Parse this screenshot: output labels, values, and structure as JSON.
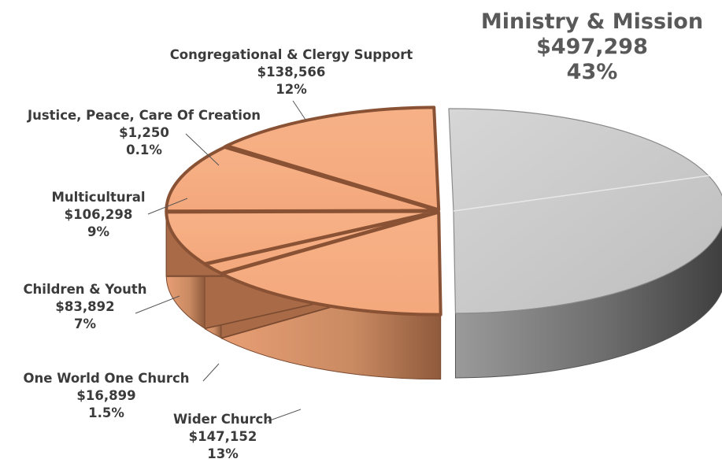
{
  "chart_data": {
    "type": "pie",
    "style": "3d-exploded",
    "slices": [
      {
        "name": "Ministry & Mission",
        "amount": "$497,298",
        "percent": "43%",
        "value": 497298,
        "color": "#c8c8c8"
      },
      {
        "name": "Wider Church",
        "amount": "$147,152",
        "percent": "13%",
        "value": 147152,
        "color": "#f6ad82"
      },
      {
        "name": "One World One Church",
        "amount": "$16,899",
        "percent": "1.5%",
        "value": 16899,
        "color": "#f6ad82"
      },
      {
        "name": "Children & Youth",
        "amount": "$83,892",
        "percent": "7%",
        "value": 83892,
        "color": "#f6ad82"
      },
      {
        "name": "Multicultural",
        "amount": "$106,298",
        "percent": "9%",
        "value": 106298,
        "color": "#f6ad82"
      },
      {
        "name": "Justice, Peace, Care Of Creation",
        "amount": "$1,250",
        "percent": "0.1%",
        "value": 1250,
        "color": "#f6ad82"
      },
      {
        "name": "Congregational & Clergy Support",
        "amount": "$138,566",
        "percent": "12%",
        "value": 138566,
        "color": "#f6ad82"
      }
    ]
  }
}
